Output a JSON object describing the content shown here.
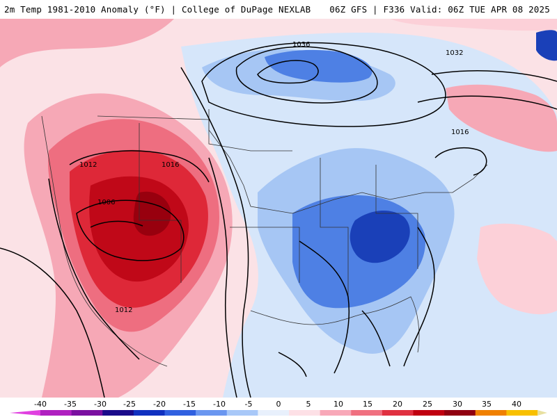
{
  "header": {
    "left_title": "2m Temp 1981-2010 Anomaly (°F) | College of DuPage NEXLAB",
    "right_title": "06Z GFS | F336 Valid: 06Z TUE APR 08 2025"
  },
  "isobar_labels": [
    "1036",
    "1032",
    "1016",
    "1012",
    "1016",
    "1006",
    "1012"
  ],
  "colorbar": {
    "ticks": [
      "-40",
      "-35",
      "-30",
      "-25",
      "-20",
      "-15",
      "-10",
      "-5",
      "0",
      "5",
      "10",
      "15",
      "20",
      "25",
      "30",
      "35",
      "40"
    ],
    "colors": [
      "#e040e0",
      "#b020c0",
      "#7a10a0",
      "#1a0a8a",
      "#1030c0",
      "#3060e0",
      "#6a96f0",
      "#a8c8f8",
      "#e8f0fc",
      "#fde0e6",
      "#f8a8b8",
      "#f07080",
      "#e03040",
      "#c00010",
      "#900010",
      "#f08000",
      "#f8c000",
      "#e8e0a0"
    ]
  }
}
